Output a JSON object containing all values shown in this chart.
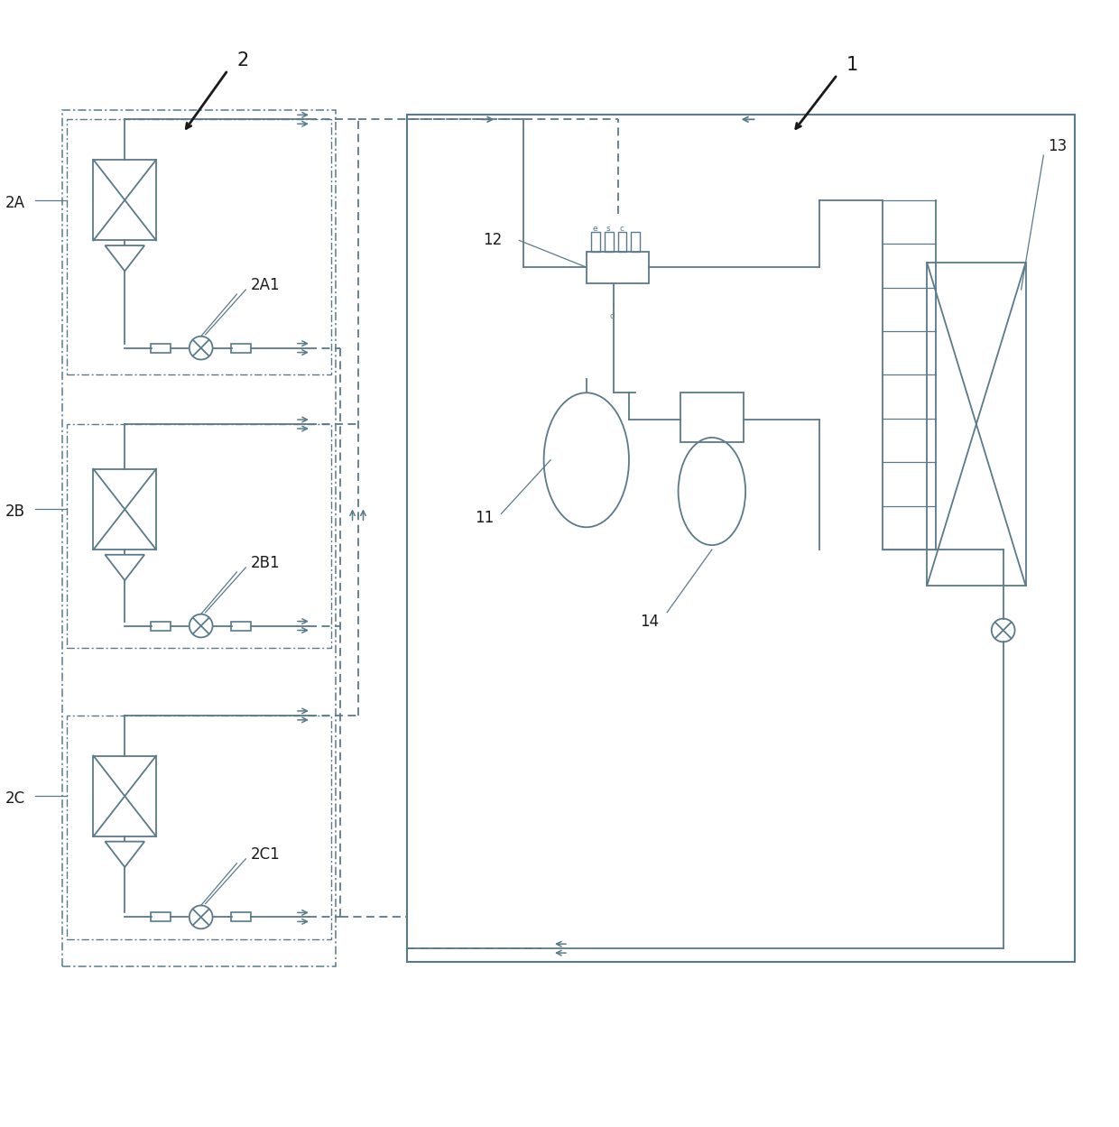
{
  "bg_color": "#ffffff",
  "lc": "#5a7a8a",
  "black": "#1a1a1a",
  "gray": "#888888",
  "figsize": [
    12.4,
    12.49
  ],
  "dpi": 100,
  "labels": {
    "num1": "1",
    "num2": "2",
    "num11": "11",
    "num12": "12",
    "num13": "13",
    "num14": "14",
    "lbl2A": "2A",
    "lbl2A1": "2A1",
    "lbl2B": "2B",
    "lbl2B1": "2B1",
    "lbl2C": "2C",
    "lbl2C1": "2C1"
  }
}
